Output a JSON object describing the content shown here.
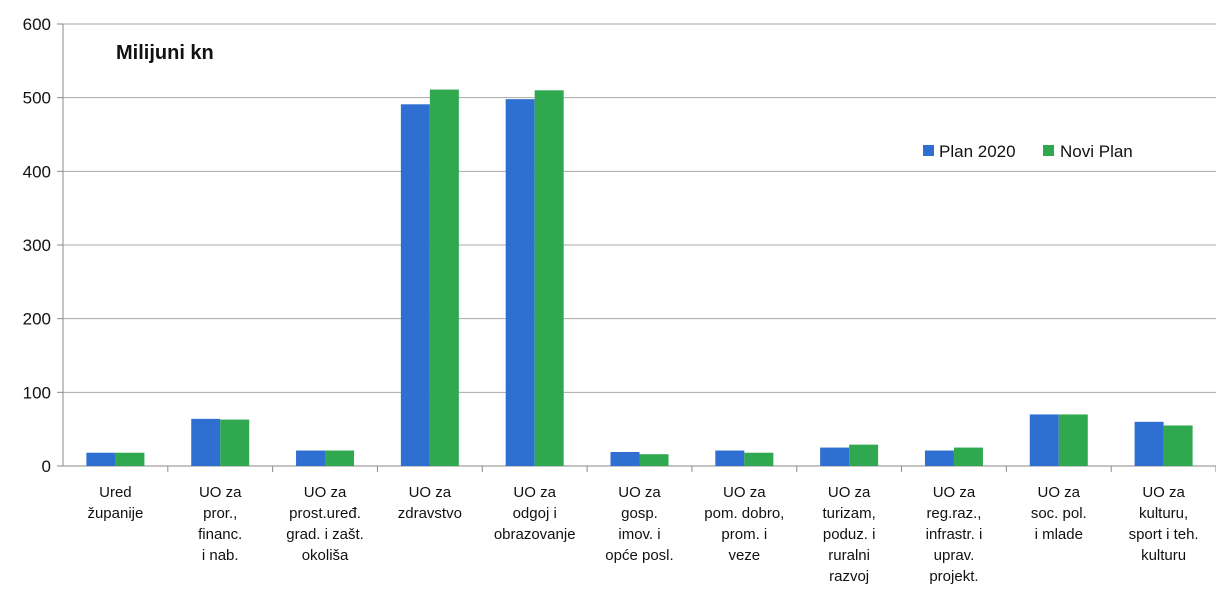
{
  "chart_data": {
    "type": "bar",
    "unit_label": "Milijuni kn",
    "categories": [
      [
        "Ured",
        "županije"
      ],
      [
        "UO za",
        "pror.,",
        "financ.",
        "i nab."
      ],
      [
        "UO za",
        "prost.uređ.",
        "grad. i zašt.",
        "okoliša"
      ],
      [
        "UO za",
        "zdravstvo"
      ],
      [
        "UO za",
        "odgoj i",
        "obrazovanje"
      ],
      [
        "UO za",
        "gosp.",
        "imov. i",
        "opće posl."
      ],
      [
        "UO za",
        "pom. dobro,",
        "prom. i",
        "veze"
      ],
      [
        "UO za",
        "turizam,",
        "poduz. i",
        "ruralni",
        "razvoj"
      ],
      [
        "UO za",
        "reg.raz.,",
        "infrastr. i",
        "uprav.",
        "projekt."
      ],
      [
        "UO za",
        "soc. pol.",
        "i mlade"
      ],
      [
        "UO za",
        "kulturu,",
        "sport i teh.",
        "kulturu"
      ]
    ],
    "series": [
      {
        "name": "Plan 2020",
        "color": "#2f6fd1",
        "values": [
          18,
          64,
          21,
          491,
          498,
          19,
          21,
          25,
          21,
          70,
          60
        ]
      },
      {
        "name": "Novi Plan",
        "color": "#2fa84f",
        "values": [
          18,
          63,
          21,
          511,
          510,
          16,
          18,
          29,
          25,
          70,
          55
        ]
      }
    ],
    "y_ticks": [
      "0",
      "100",
      "200",
      "300",
      "400",
      "500",
      "600"
    ],
    "ylim": [
      0,
      600
    ],
    "grid": true,
    "legend_position": "top-right"
  }
}
